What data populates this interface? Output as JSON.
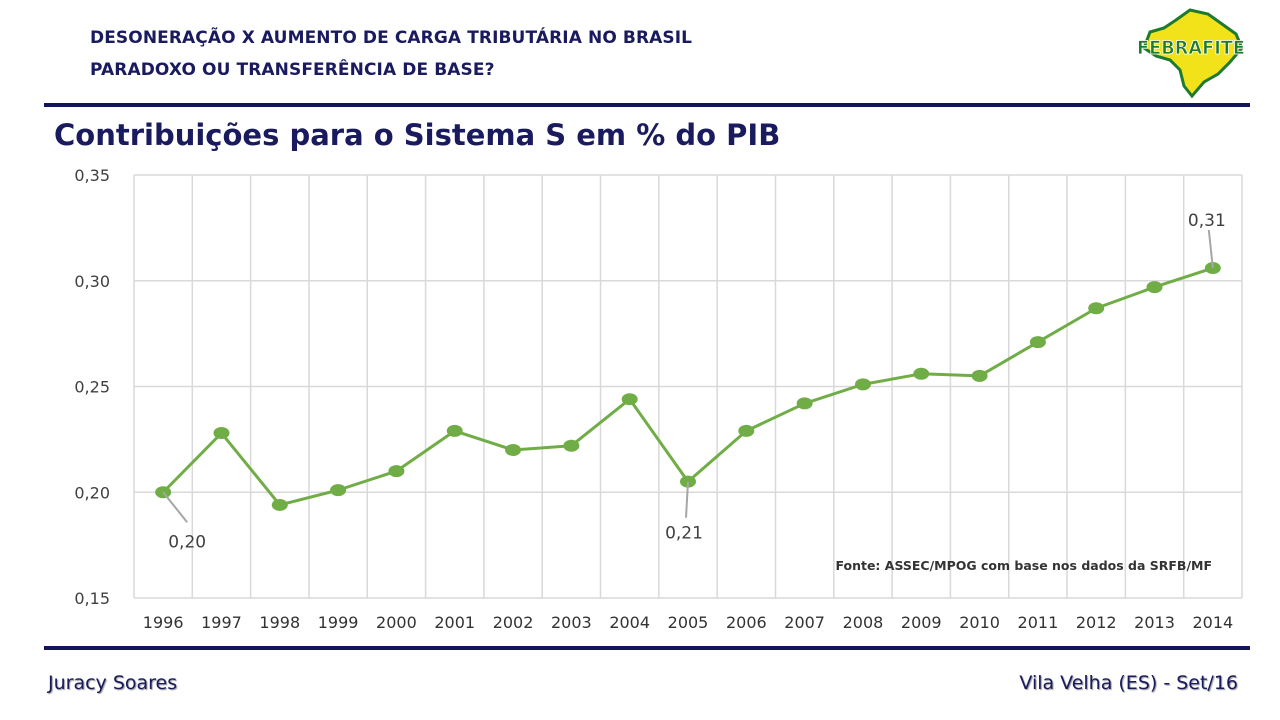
{
  "header": {
    "line1": "DESONERAÇÃO X AUMENTO DE CARGA TRIBUTÁRIA NO BRASIL",
    "line2": "PARADOXO OU TRANSFERÊNCIA DE BASE?"
  },
  "logo": {
    "text": "FEBRAFITE",
    "icon": "brazil-map-logo"
  },
  "slide_title": "Contribuições para o Sistema S em % do PIB",
  "footer": {
    "author": "Juracy Soares",
    "place": "Vila Velha (ES) - Set/16"
  },
  "colors": {
    "navy": "#1a1a5e",
    "line": "#70ad47",
    "logo_green": "#1e7a2e",
    "logo_yellow": "#f2e21a"
  },
  "chart_data": {
    "type": "line",
    "title": "",
    "xlabel": "",
    "ylabel": "",
    "categories": [
      "1996",
      "1997",
      "1998",
      "1999",
      "2000",
      "2001",
      "2002",
      "2003",
      "2004",
      "2005",
      "2006",
      "2007",
      "2008",
      "2009",
      "2010",
      "2011",
      "2012",
      "2013",
      "2014"
    ],
    "series": [
      {
        "values": [
          0.2,
          0.228,
          0.194,
          0.201,
          0.21,
          0.229,
          0.22,
          0.222,
          0.244,
          0.205,
          0.229,
          0.242,
          0.251,
          0.256,
          0.255,
          0.271,
          0.287,
          0.297,
          0.306
        ]
      }
    ],
    "ylim": [
      0.15,
      0.35
    ],
    "yticks": [
      "0,15",
      "0,20",
      "0,25",
      "0,30",
      "0,35"
    ],
    "grid": true,
    "legend": "none",
    "annotations": [
      {
        "category": "1996",
        "text": "0,20"
      },
      {
        "category": "2005",
        "text": "0,21"
      },
      {
        "category": "2014",
        "text": "0,31"
      }
    ],
    "source_note": "Fonte: ASSEC/MPOG com base nos dados da SRFB/MF"
  }
}
